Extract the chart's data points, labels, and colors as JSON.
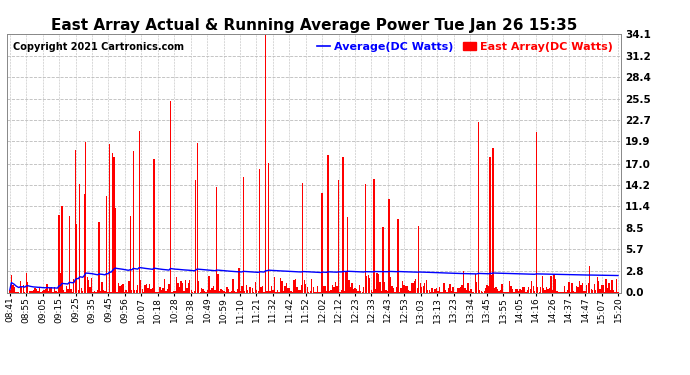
{
  "title": "East Array Actual & Running Average Power Tue Jan 26 15:35",
  "copyright": "Copyright 2021 Cartronics.com",
  "legend_avg": "Average(DC Watts)",
  "legend_east": "East Array(DC Watts)",
  "avg_color": "#0000ff",
  "east_color": "#ff0000",
  "background_color": "#ffffff",
  "plot_bg_color": "#ffffff",
  "grid_color": "#bbbbbb",
  "yticks": [
    0.0,
    2.8,
    5.7,
    8.5,
    11.4,
    14.2,
    17.0,
    19.9,
    22.7,
    25.5,
    28.4,
    31.2,
    34.1
  ],
  "xtick_labels": [
    "08:41",
    "08:55",
    "09:05",
    "09:15",
    "09:25",
    "09:35",
    "09:45",
    "09:56",
    "10:07",
    "10:18",
    "10:28",
    "10:38",
    "10:49",
    "10:59",
    "11:10",
    "11:21",
    "11:32",
    "11:42",
    "11:52",
    "12:02",
    "12:12",
    "12:23",
    "12:33",
    "12:43",
    "12:53",
    "13:03",
    "13:13",
    "13:23",
    "13:34",
    "13:45",
    "13:55",
    "14:05",
    "14:16",
    "14:26",
    "14:37",
    "14:47",
    "15:07",
    "15:20"
  ],
  "ylim": [
    0.0,
    34.1
  ],
  "title_fontsize": 11,
  "copyright_fontsize": 7,
  "legend_fontsize": 8,
  "tick_fontsize": 6.5,
  "ytick_fontsize": 7.5,
  "n_points": 410,
  "seed": 42
}
